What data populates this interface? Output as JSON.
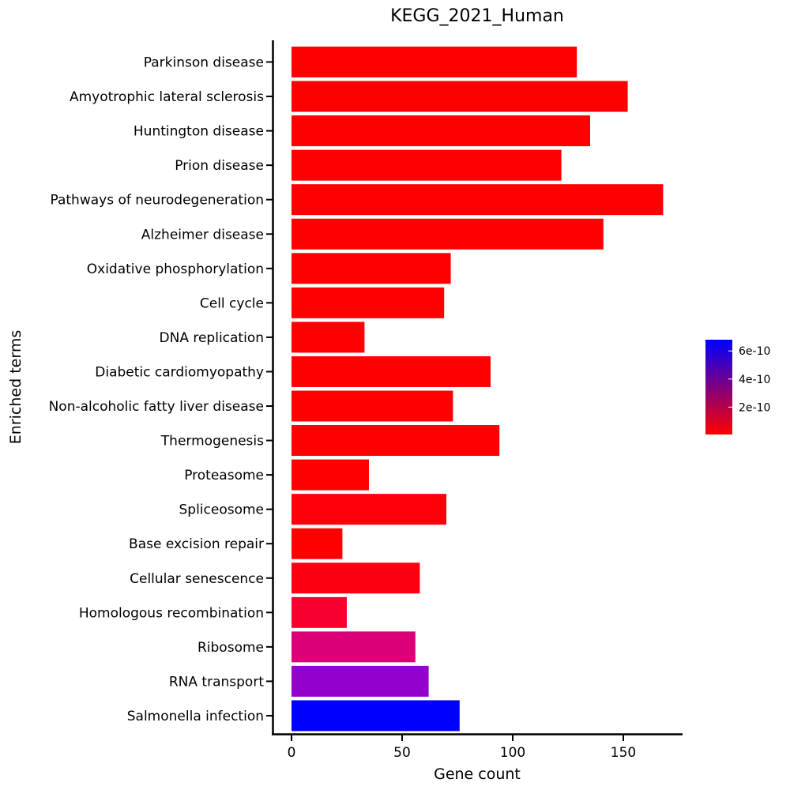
{
  "chart_data": {
    "type": "bar",
    "orientation": "horizontal",
    "title": "KEGG_2021_Human",
    "xlabel": "Gene count",
    "ylabel": "Enriched terms",
    "xlim": [
      -8,
      175
    ],
    "xticks": [
      0,
      50,
      100,
      150
    ],
    "grid": false,
    "categories": [
      "Parkinson disease",
      "Amyotrophic lateral sclerosis",
      "Huntington disease",
      "Prion disease",
      "Pathways of neurodegeneration",
      "Alzheimer disease",
      "Oxidative phosphorylation",
      "Cell cycle",
      "DNA replication",
      "Diabetic cardiomyopathy",
      "Non-alcoholic fatty liver disease",
      "Thermogenesis",
      "Proteasome",
      "Spliceosome",
      "Base excision repair",
      "Cellular senescence",
      "Homologous recombination",
      "Ribosome",
      "RNA transport",
      "Salmonella infection"
    ],
    "values": [
      129,
      152,
      135,
      122,
      168,
      141,
      72,
      69,
      33,
      90,
      73,
      94,
      35,
      70,
      23,
      58,
      25,
      56,
      62,
      76
    ],
    "bar_colors": [
      "#ff0000",
      "#ff0000",
      "#ff0000",
      "#ff0000",
      "#ff0000",
      "#ff0000",
      "#ff0000",
      "#ff0000",
      "#ff0000",
      "#ff0000",
      "#ff0000",
      "#ff0000",
      "#ff0000",
      "#ff0008",
      "#ff0000",
      "#fc0010",
      "#f70030",
      "#dc0078",
      "#9400cc",
      "#0000ff"
    ],
    "colorbar": {
      "ticks": [
        "6e-10",
        "4e-10",
        "2e-10"
      ],
      "tick_values": [
        6e-10,
        4e-10,
        2e-10
      ],
      "range": [
        5e-12,
        6.8e-10
      ],
      "low_color": "#ff0000",
      "high_color": "#0000ff",
      "placement": "right"
    }
  }
}
